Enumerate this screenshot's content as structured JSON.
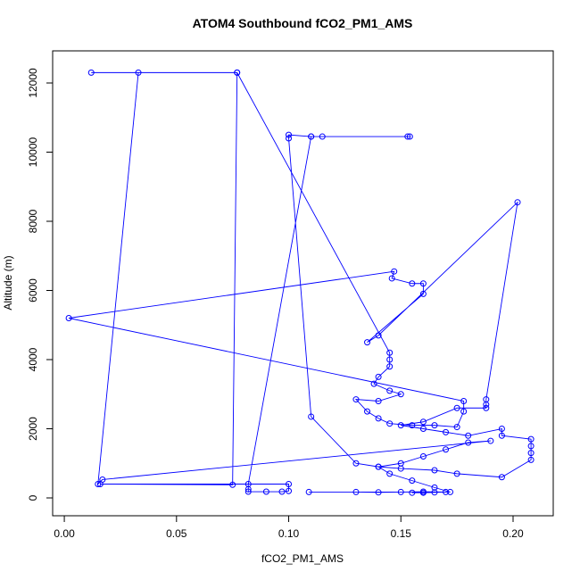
{
  "chart_data": {
    "type": "scatter-line",
    "title": "ATOM4 Southbound fCO2_PM1_AMS",
    "x_label": "fCO2_PM1_AMS",
    "y_label": "Altitude (m)",
    "color": "#0000ff",
    "xlim": [
      -0.0052,
      0.2179
    ],
    "ylim": [
      -516,
      12929
    ],
    "xticks": [
      {
        "value": 0,
        "label": "0.00"
      },
      {
        "value": 0.05,
        "label": "0.05"
      },
      {
        "value": 0.1,
        "label": "0.10"
      },
      {
        "value": 0.15,
        "label": "0.15"
      },
      {
        "value": 0.2,
        "label": "0.20"
      }
    ],
    "yticks": [
      0,
      2000,
      4000,
      6000,
      8000,
      10000,
      12000
    ],
    "x": [
      0.155,
      0.16,
      0.165,
      0.17,
      0.16,
      0.15,
      0.14,
      0.13,
      0.109,
      0.172,
      0.165,
      0.155,
      0.145,
      0.14,
      0.15,
      0.16,
      0.17,
      0.18,
      0.19,
      0.017,
      0.015,
      0.033,
      0.012,
      0.077,
      0.145,
      0.145,
      0.145,
      0.14,
      0.138,
      0.145,
      0.15,
      0.14,
      0.13,
      0.135,
      0.14,
      0.145,
      0.155,
      0.165,
      0.175,
      0.178,
      0.178,
      0.002,
      0.147,
      0.146,
      0.155,
      0.16,
      0.16,
      0.135,
      0.14,
      0.202,
      0.188,
      0.188,
      0.188,
      0.175,
      0.16,
      0.15,
      0.16,
      0.17,
      0.18,
      0.195,
      0.195,
      0.208,
      0.208,
      0.208,
      0.208,
      0.195,
      0.175,
      0.165,
      0.15,
      0.14,
      0.13,
      0.11,
      0.1,
      0.1,
      0.11,
      0.115,
      0.153,
      0.154,
      0.11,
      0.082,
      0.082,
      0.082,
      0.09,
      0.097,
      0.1,
      0.1,
      0.016,
      0.075,
      0.077
    ],
    "y": [
      150,
      150,
      160,
      170,
      180,
      170,
      160,
      170,
      170,
      170,
      300,
      500,
      700,
      900,
      1000,
      1200,
      1400,
      1600,
      1650,
      530,
      400,
      12300,
      12300,
      12300,
      4200,
      4000,
      3800,
      3500,
      3300,
      3100,
      3000,
      2800,
      2850,
      2500,
      2300,
      2150,
      2100,
      2100,
      2050,
      2500,
      2800,
      5200,
      6550,
      6350,
      6200,
      6200,
      5900,
      4500,
      4700,
      8550,
      2850,
      2700,
      2600,
      2600,
      2200,
      2100,
      2000,
      1900,
      1800,
      2000,
      1800,
      1700,
      1500,
      1300,
      1100,
      600,
      700,
      800,
      850,
      900,
      1000,
      2350,
      10400,
      10500,
      10450,
      10450,
      10450,
      10450,
      10450,
      400,
      250,
      180,
      180,
      180,
      200,
      400,
      400,
      380,
      12300
    ]
  }
}
